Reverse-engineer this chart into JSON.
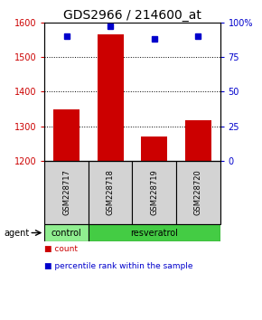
{
  "title": "GDS2966 / 214600_at",
  "samples": [
    "GSM228717",
    "GSM228718",
    "GSM228719",
    "GSM228720"
  ],
  "count_values": [
    1348,
    1565,
    1272,
    1318
  ],
  "percentile_values": [
    90,
    97,
    88,
    90
  ],
  "ylim_left": [
    1200,
    1600
  ],
  "ylim_right": [
    0,
    100
  ],
  "yticks_left": [
    1200,
    1300,
    1400,
    1500,
    1600
  ],
  "yticks_right": [
    0,
    25,
    50,
    75,
    100
  ],
  "yticklabels_right": [
    "0",
    "25",
    "50",
    "75",
    "100%"
  ],
  "bar_color": "#cc0000",
  "dot_color": "#0000cc",
  "groups": [
    {
      "label": "control",
      "indices": [
        0
      ],
      "color": "#90ee90"
    },
    {
      "label": "resveratrol",
      "indices": [
        1,
        2,
        3
      ],
      "color": "#44cc44"
    }
  ],
  "agent_label": "agent",
  "legend_items": [
    {
      "color": "#cc0000",
      "label": "count"
    },
    {
      "color": "#0000cc",
      "label": "percentile rank within the sample"
    }
  ],
  "grid_color": "#000000",
  "sample_box_color": "#d3d3d3",
  "bar_width": 0.6,
  "title_fontsize": 10,
  "tick_fontsize": 7,
  "label_fontsize": 7
}
